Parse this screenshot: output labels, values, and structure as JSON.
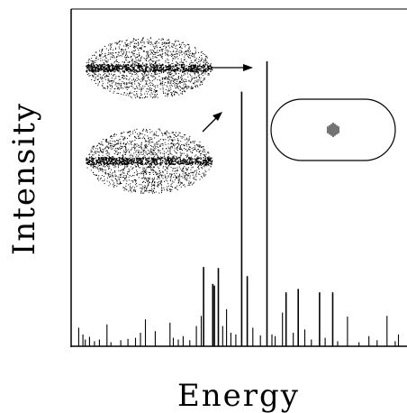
{
  "chart_data": {
    "type": "bar",
    "xlabel": "Energy",
    "ylabel": "Intensity",
    "title": "",
    "grid": false,
    "xlim": [
      0,
      1
    ],
    "ylim": [
      0,
      1
    ],
    "x_tick_labels": [],
    "y_tick_labels": [],
    "legend": "none",
    "bar_color": "#000000",
    "spectrum": [
      {
        "x": 0.012,
        "y": 0.055
      },
      {
        "x": 0.025,
        "y": 0.035
      },
      {
        "x": 0.032,
        "y": 0.02
      },
      {
        "x": 0.045,
        "y": 0.028
      },
      {
        "x": 0.06,
        "y": 0.015
      },
      {
        "x": 0.075,
        "y": 0.02
      },
      {
        "x": 0.098,
        "y": 0.065
      },
      {
        "x": 0.11,
        "y": 0.012
      },
      {
        "x": 0.14,
        "y": 0.018
      },
      {
        "x": 0.162,
        "y": 0.022
      },
      {
        "x": 0.185,
        "y": 0.025
      },
      {
        "x": 0.2,
        "y": 0.04
      },
      {
        "x": 0.215,
        "y": 0.08
      },
      {
        "x": 0.245,
        "y": 0.045
      },
      {
        "x": 0.29,
        "y": 0.07
      },
      {
        "x": 0.3,
        "y": 0.025
      },
      {
        "x": 0.315,
        "y": 0.02
      },
      {
        "x": 0.33,
        "y": 0.03
      },
      {
        "x": 0.35,
        "y": 0.018
      },
      {
        "x": 0.37,
        "y": 0.06
      },
      {
        "x": 0.385,
        "y": 0.09
      },
      {
        "x": 0.392,
        "y": 0.235
      },
      {
        "x": 0.42,
        "y": 0.185
      },
      {
        "x": 0.425,
        "y": 0.18
      },
      {
        "x": 0.437,
        "y": 0.232
      },
      {
        "x": 0.45,
        "y": 0.06
      },
      {
        "x": 0.462,
        "y": 0.11
      },
      {
        "x": 0.475,
        "y": 0.04
      },
      {
        "x": 0.49,
        "y": 0.035
      },
      {
        "x": 0.508,
        "y": 0.755
      },
      {
        "x": 0.525,
        "y": 0.208
      },
      {
        "x": 0.542,
        "y": 0.055
      },
      {
        "x": 0.565,
        "y": 0.032
      },
      {
        "x": 0.585,
        "y": 0.845
      },
      {
        "x": 0.6,
        "y": 0.035
      },
      {
        "x": 0.61,
        "y": 0.03
      },
      {
        "x": 0.632,
        "y": 0.1
      },
      {
        "x": 0.643,
        "y": 0.16
      },
      {
        "x": 0.665,
        "y": 0.04
      },
      {
        "x": 0.68,
        "y": 0.17
      },
      {
        "x": 0.7,
        "y": 0.05
      },
      {
        "x": 0.72,
        "y": 0.02
      },
      {
        "x": 0.745,
        "y": 0.16
      },
      {
        "x": 0.762,
        "y": 0.025
      },
      {
        "x": 0.785,
        "y": 0.16
      },
      {
        "x": 0.8,
        "y": 0.015
      },
      {
        "x": 0.83,
        "y": 0.088
      },
      {
        "x": 0.865,
        "y": 0.012
      },
      {
        "x": 0.895,
        "y": 0.03
      },
      {
        "x": 0.92,
        "y": 0.018
      },
      {
        "x": 0.95,
        "y": 0.09
      },
      {
        "x": 0.975,
        "y": 0.015
      },
      {
        "x": 0.985,
        "y": 0.035
      }
    ]
  },
  "insets": [
    {
      "name": "scar-wavefunction-upper",
      "kind": "dotted-ellipse"
    },
    {
      "name": "scar-wavefunction-lower",
      "kind": "dotted-ellipse"
    },
    {
      "name": "billiard-stadium",
      "kind": "stadium-outline"
    }
  ]
}
